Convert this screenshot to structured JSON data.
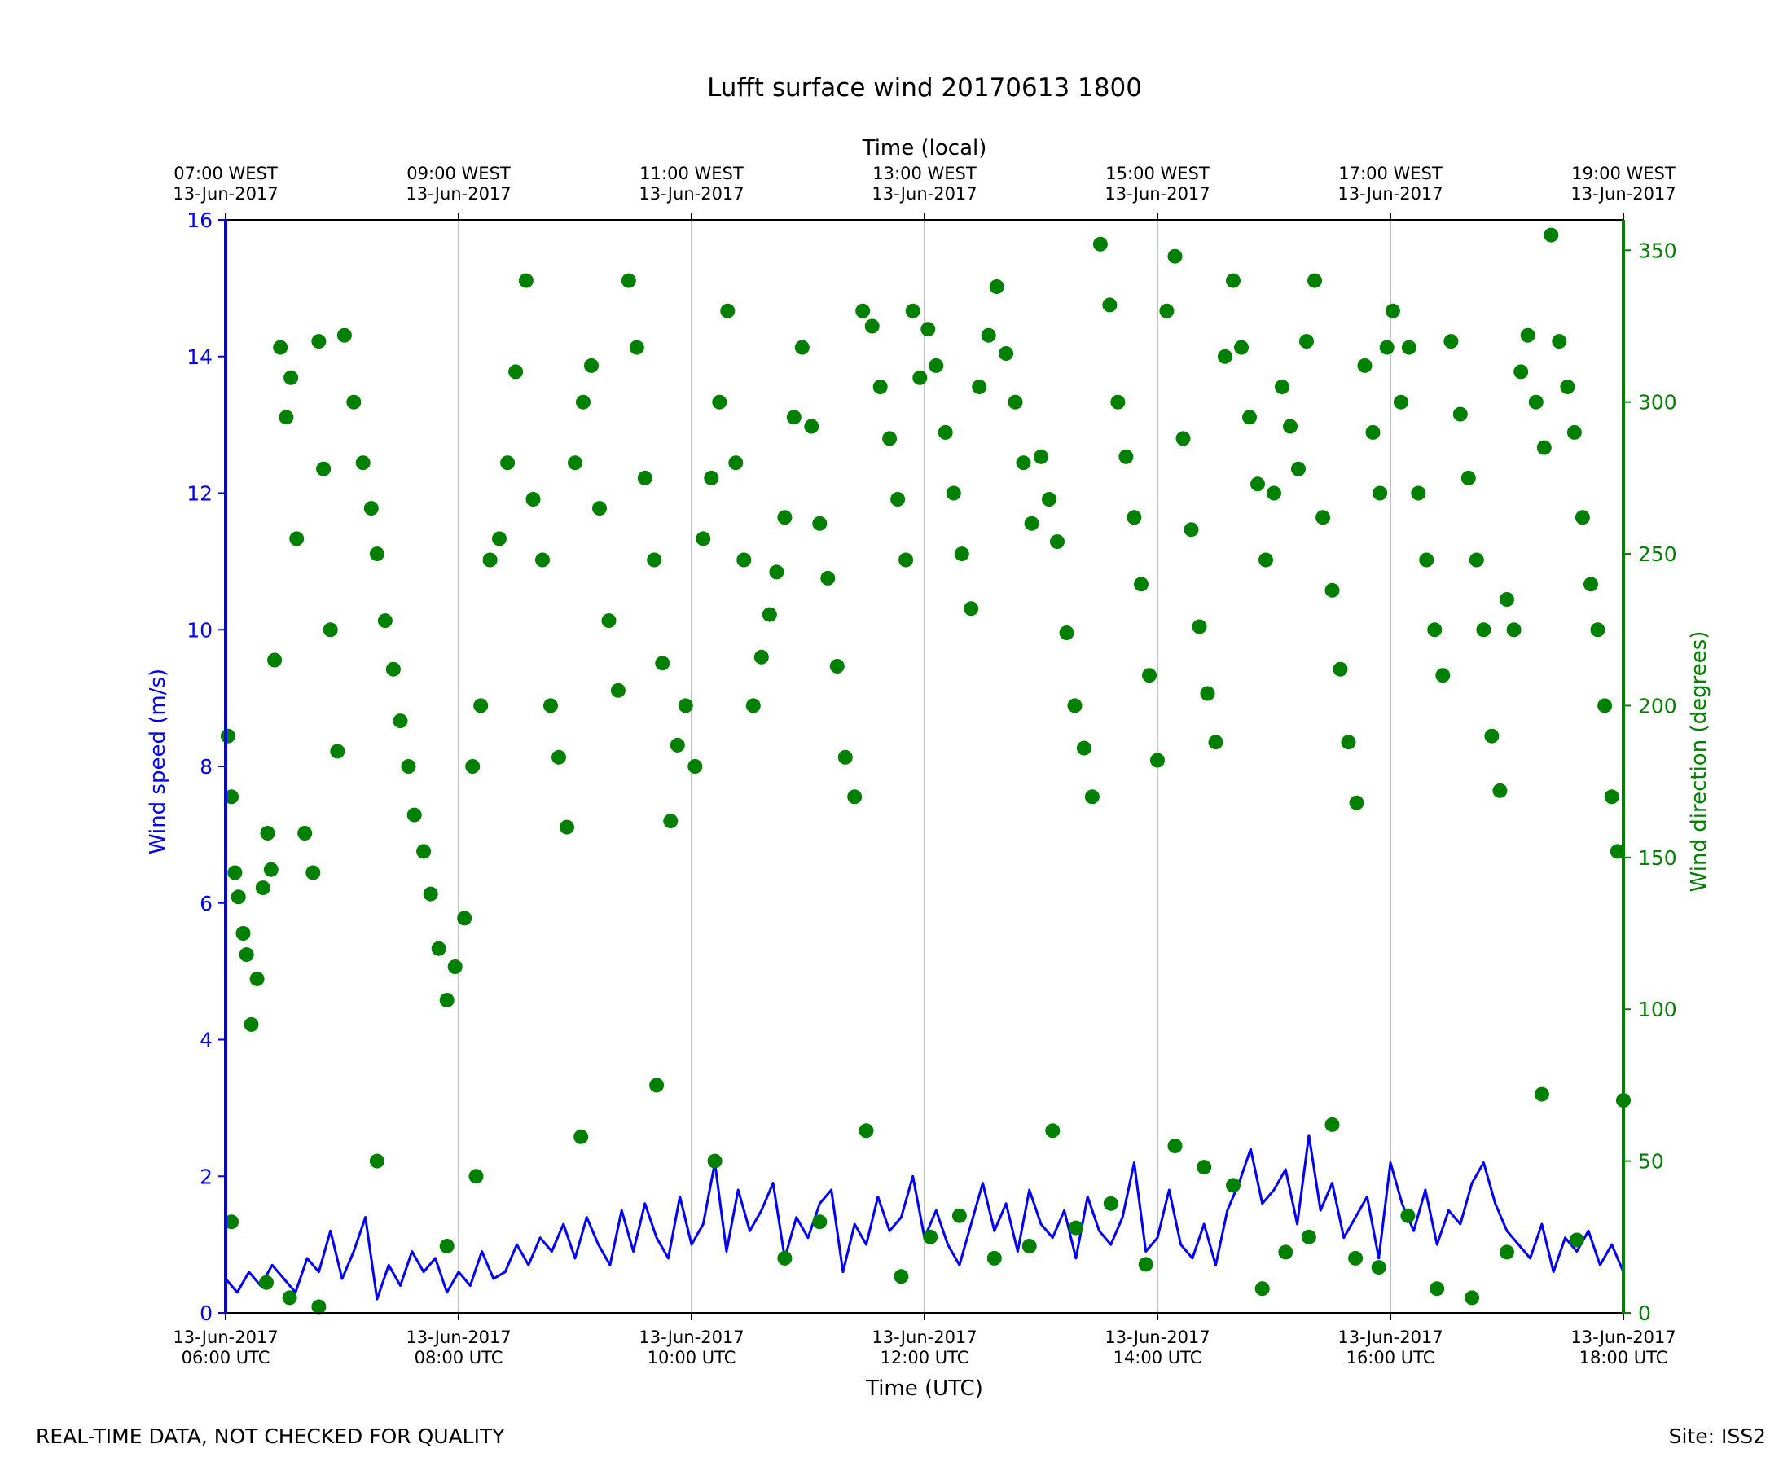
{
  "chart_data": {
    "type": "line+scatter",
    "title": "Lufft surface wind 20170613 1800",
    "xlabel": "Time (UTC)",
    "x2label": "Time (local)",
    "ylabel": "Wind speed (m/s)",
    "y2label": "Wind direction (degrees)",
    "xlim": [
      "2017-06-13T06:00Z",
      "2017-06-13T18:00Z"
    ],
    "ylim": [
      0,
      16
    ],
    "y2lim": [
      0,
      360
    ],
    "grid": "vertical at major x ticks",
    "x_ticks": [
      {
        "line1": "13-Jun-2017",
        "line2": "06:00 UTC"
      },
      {
        "line1": "13-Jun-2017",
        "line2": "08:00 UTC"
      },
      {
        "line1": "13-Jun-2017",
        "line2": "10:00 UTC"
      },
      {
        "line1": "13-Jun-2017",
        "line2": "12:00 UTC"
      },
      {
        "line1": "13-Jun-2017",
        "line2": "14:00 UTC"
      },
      {
        "line1": "13-Jun-2017",
        "line2": "16:00 UTC"
      },
      {
        "line1": "13-Jun-2017",
        "line2": "18:00 UTC"
      }
    ],
    "x2_ticks": [
      {
        "line1": "07:00 WEST",
        "line2": "13-Jun-2017"
      },
      {
        "line1": "09:00 WEST",
        "line2": "13-Jun-2017"
      },
      {
        "line1": "11:00 WEST",
        "line2": "13-Jun-2017"
      },
      {
        "line1": "13:00 WEST",
        "line2": "13-Jun-2017"
      },
      {
        "line1": "15:00 WEST",
        "line2": "13-Jun-2017"
      },
      {
        "line1": "17:00 WEST",
        "line2": "13-Jun-2017"
      },
      {
        "line1": "19:00 WEST",
        "line2": "13-Jun-2017"
      }
    ],
    "y_ticks": [
      "0",
      "2",
      "4",
      "6",
      "8",
      "10",
      "12",
      "14",
      "16"
    ],
    "y2_ticks": [
      "0",
      "50",
      "100",
      "150",
      "200",
      "250",
      "300",
      "350"
    ],
    "colors": {
      "speed": "#0000ff",
      "direction": "#008000"
    },
    "series": [
      {
        "kind": "line",
        "hour_utc": [
          6.0,
          6.1,
          6.2,
          6.3,
          6.4,
          6.5,
          6.6,
          6.7,
          6.8,
          6.9,
          7.0,
          7.1,
          7.2,
          7.3,
          7.4,
          7.5,
          7.6,
          7.7,
          7.8,
          7.9,
          8.0,
          8.1,
          8.2,
          8.3,
          8.4,
          8.5,
          8.6,
          8.7,
          8.8,
          8.9,
          9.0,
          9.1,
          9.2,
          9.3,
          9.4,
          9.5,
          9.6,
          9.7,
          9.8,
          9.9,
          10.0,
          10.1,
          10.2,
          10.3,
          10.4,
          10.5,
          10.6,
          10.7,
          10.8,
          10.9,
          11.0,
          11.1,
          11.2,
          11.3,
          11.4,
          11.5,
          11.6,
          11.7,
          11.8,
          11.9,
          12.0,
          12.1,
          12.2,
          12.3,
          12.4,
          12.5,
          12.6,
          12.7,
          12.8,
          12.9,
          13.0,
          13.1,
          13.2,
          13.3,
          13.4,
          13.5,
          13.6,
          13.7,
          13.8,
          13.9,
          14.0,
          14.1,
          14.2,
          14.3,
          14.4,
          14.5,
          14.6,
          14.7,
          14.8,
          14.9,
          15.0,
          15.1,
          15.2,
          15.3,
          15.4,
          15.5,
          15.6,
          15.7,
          15.8,
          15.9,
          16.0,
          16.1,
          16.2,
          16.3,
          16.4,
          16.5,
          16.6,
          16.7,
          16.8,
          16.9,
          17.0,
          17.1,
          17.2,
          17.3,
          17.4,
          17.5,
          17.6,
          17.7,
          17.8,
          17.9,
          18.0
        ],
        "values": [
          0.5,
          0.3,
          0.6,
          0.4,
          0.7,
          0.5,
          0.3,
          0.8,
          0.6,
          1.2,
          0.5,
          0.9,
          1.4,
          0.2,
          0.7,
          0.4,
          0.9,
          0.6,
          0.8,
          0.3,
          0.6,
          0.4,
          0.9,
          0.5,
          0.6,
          1.0,
          0.7,
          1.1,
          0.9,
          1.3,
          0.8,
          1.4,
          1.0,
          0.7,
          1.5,
          0.9,
          1.6,
          1.1,
          0.8,
          1.7,
          1.0,
          1.3,
          2.2,
          0.9,
          1.8,
          1.2,
          1.5,
          1.9,
          0.8,
          1.4,
          1.1,
          1.6,
          1.8,
          0.6,
          1.3,
          1.0,
          1.7,
          1.2,
          1.4,
          2.0,
          1.1,
          1.5,
          1.0,
          0.7,
          1.3,
          1.9,
          1.2,
          1.6,
          0.9,
          1.8,
          1.3,
          1.1,
          1.5,
          0.8,
          1.7,
          1.2,
          1.0,
          1.4,
          2.2,
          0.9,
          1.1,
          1.8,
          1.0,
          0.8,
          1.3,
          0.7,
          1.5,
          1.9,
          2.4,
          1.6,
          1.8,
          2.1,
          1.3,
          2.6,
          1.5,
          1.9,
          1.1,
          1.4,
          1.7,
          0.8,
          2.2,
          1.6,
          1.2,
          1.8,
          1.0,
          1.5,
          1.3,
          1.9,
          2.2,
          1.6,
          1.2,
          1.0,
          0.8,
          1.3,
          0.6,
          1.1,
          0.9,
          1.2,
          0.7,
          1.0,
          0.6
        ]
      },
      {
        "kind": "scatter",
        "points": [
          [
            6.02,
            190
          ],
          [
            6.05,
            170
          ],
          [
            6.08,
            145
          ],
          [
            6.11,
            137
          ],
          [
            6.15,
            125
          ],
          [
            6.18,
            118
          ],
          [
            6.22,
            95
          ],
          [
            6.27,
            110
          ],
          [
            6.32,
            140
          ],
          [
            6.36,
            158
          ],
          [
            6.39,
            146
          ],
          [
            6.42,
            215
          ],
          [
            6.47,
            318
          ],
          [
            6.52,
            295
          ],
          [
            6.56,
            308
          ],
          [
            6.61,
            255
          ],
          [
            6.68,
            158
          ],
          [
            6.75,
            145
          ],
          [
            6.8,
            320
          ],
          [
            6.84,
            278
          ],
          [
            6.9,
            225
          ],
          [
            6.96,
            185
          ],
          [
            7.02,
            322
          ],
          [
            7.1,
            300
          ],
          [
            7.18,
            280
          ],
          [
            7.25,
            265
          ],
          [
            7.3,
            250
          ],
          [
            7.37,
            228
          ],
          [
            7.44,
            212
          ],
          [
            7.5,
            195
          ],
          [
            7.57,
            180
          ],
          [
            7.62,
            164
          ],
          [
            7.7,
            152
          ],
          [
            7.76,
            138
          ],
          [
            7.83,
            120
          ],
          [
            7.9,
            103
          ],
          [
            7.97,
            114
          ],
          [
            8.05,
            130
          ],
          [
            8.12,
            180
          ],
          [
            8.19,
            200
          ],
          [
            8.27,
            248
          ],
          [
            8.35,
            255
          ],
          [
            8.42,
            280
          ],
          [
            8.49,
            310
          ],
          [
            8.58,
            340
          ],
          [
            8.64,
            268
          ],
          [
            8.72,
            248
          ],
          [
            8.79,
            200
          ],
          [
            8.86,
            183
          ],
          [
            8.93,
            160
          ],
          [
            9.0,
            280
          ],
          [
            9.07,
            300
          ],
          [
            9.14,
            312
          ],
          [
            9.21,
            265
          ],
          [
            9.29,
            228
          ],
          [
            9.37,
            205
          ],
          [
            9.46,
            340
          ],
          [
            9.53,
            318
          ],
          [
            9.6,
            275
          ],
          [
            9.68,
            248
          ],
          [
            9.75,
            214
          ],
          [
            9.82,
            162
          ],
          [
            9.88,
            187
          ],
          [
            9.95,
            200
          ],
          [
            10.03,
            180
          ],
          [
            10.1,
            255
          ],
          [
            10.17,
            275
          ],
          [
            10.24,
            300
          ],
          [
            10.31,
            330
          ],
          [
            10.38,
            280
          ],
          [
            10.45,
            248
          ],
          [
            10.53,
            200
          ],
          [
            10.6,
            216
          ],
          [
            10.67,
            230
          ],
          [
            10.73,
            244
          ],
          [
            10.8,
            262
          ],
          [
            10.88,
            295
          ],
          [
            10.95,
            318
          ],
          [
            11.03,
            292
          ],
          [
            11.1,
            260
          ],
          [
            11.17,
            242
          ],
          [
            11.25,
            213
          ],
          [
            11.32,
            183
          ],
          [
            11.4,
            170
          ],
          [
            11.47,
            330
          ],
          [
            11.55,
            325
          ],
          [
            11.62,
            305
          ],
          [
            11.7,
            288
          ],
          [
            11.77,
            268
          ],
          [
            11.84,
            248
          ],
          [
            11.9,
            330
          ],
          [
            11.96,
            308
          ],
          [
            12.03,
            324
          ],
          [
            12.1,
            312
          ],
          [
            12.18,
            290
          ],
          [
            12.25,
            270
          ],
          [
            12.32,
            250
          ],
          [
            12.4,
            232
          ],
          [
            12.47,
            305
          ],
          [
            12.55,
            322
          ],
          [
            12.62,
            338
          ],
          [
            12.7,
            316
          ],
          [
            12.78,
            300
          ],
          [
            12.85,
            280
          ],
          [
            12.92,
            260
          ],
          [
            13.0,
            282
          ],
          [
            13.07,
            268
          ],
          [
            13.14,
            254
          ],
          [
            13.22,
            224
          ],
          [
            13.29,
            200
          ],
          [
            13.37,
            186
          ],
          [
            13.44,
            170
          ],
          [
            13.51,
            352
          ],
          [
            13.59,
            332
          ],
          [
            13.66,
            300
          ],
          [
            13.73,
            282
          ],
          [
            13.8,
            262
          ],
          [
            13.86,
            240
          ],
          [
            13.93,
            210
          ],
          [
            14.0,
            182
          ],
          [
            14.08,
            330
          ],
          [
            14.15,
            348
          ],
          [
            14.22,
            288
          ],
          [
            14.29,
            258
          ],
          [
            14.36,
            226
          ],
          [
            14.43,
            204
          ],
          [
            14.5,
            188
          ],
          [
            14.58,
            315
          ],
          [
            14.65,
            340
          ],
          [
            14.72,
            318
          ],
          [
            14.79,
            295
          ],
          [
            14.86,
            273
          ],
          [
            14.93,
            248
          ],
          [
            15.0,
            270
          ],
          [
            15.07,
            305
          ],
          [
            15.14,
            292
          ],
          [
            15.21,
            278
          ],
          [
            15.28,
            320
          ],
          [
            15.35,
            340
          ],
          [
            15.42,
            262
          ],
          [
            15.5,
            238
          ],
          [
            15.57,
            212
          ],
          [
            15.64,
            188
          ],
          [
            15.71,
            168
          ],
          [
            15.78,
            312
          ],
          [
            15.85,
            290
          ],
          [
            15.91,
            270
          ],
          [
            15.97,
            318
          ],
          [
            16.02,
            330
          ],
          [
            16.09,
            300
          ],
          [
            16.16,
            318
          ],
          [
            16.24,
            270
          ],
          [
            16.31,
            248
          ],
          [
            16.38,
            225
          ],
          [
            16.45,
            210
          ],
          [
            16.52,
            320
          ],
          [
            16.6,
            296
          ],
          [
            16.67,
            275
          ],
          [
            16.74,
            248
          ],
          [
            16.8,
            225
          ],
          [
            16.87,
            190
          ],
          [
            16.94,
            172
          ],
          [
            17.0,
            235
          ],
          [
            17.06,
            225
          ],
          [
            17.12,
            310
          ],
          [
            17.18,
            322
          ],
          [
            17.25,
            300
          ],
          [
            17.32,
            285
          ],
          [
            17.38,
            355
          ],
          [
            17.45,
            320
          ],
          [
            17.52,
            305
          ],
          [
            17.58,
            290
          ],
          [
            17.65,
            262
          ],
          [
            17.72,
            240
          ],
          [
            17.78,
            225
          ],
          [
            17.84,
            200
          ],
          [
            17.9,
            170
          ],
          [
            17.95,
            152
          ],
          [
            18.0,
            70
          ],
          [
            6.05,
            30
          ],
          [
            6.35,
            10
          ],
          [
            6.55,
            5
          ],
          [
            6.8,
            2
          ],
          [
            7.3,
            50
          ],
          [
            7.9,
            22
          ],
          [
            8.15,
            45
          ],
          [
            9.05,
            58
          ],
          [
            9.7,
            75
          ],
          [
            10.2,
            50
          ],
          [
            10.8,
            18
          ],
          [
            11.1,
            30
          ],
          [
            11.5,
            60
          ],
          [
            11.8,
            12
          ],
          [
            12.05,
            25
          ],
          [
            12.3,
            32
          ],
          [
            12.6,
            18
          ],
          [
            12.9,
            22
          ],
          [
            13.1,
            60
          ],
          [
            13.3,
            28
          ],
          [
            13.6,
            36
          ],
          [
            13.9,
            16
          ],
          [
            14.15,
            55
          ],
          [
            14.4,
            48
          ],
          [
            14.65,
            42
          ],
          [
            14.9,
            8
          ],
          [
            15.1,
            20
          ],
          [
            15.3,
            25
          ],
          [
            15.5,
            62
          ],
          [
            15.7,
            18
          ],
          [
            15.9,
            15
          ],
          [
            16.15,
            32
          ],
          [
            16.4,
            8
          ],
          [
            16.7,
            5
          ],
          [
            17.0,
            20
          ],
          [
            17.3,
            72
          ],
          [
            17.6,
            24
          ]
        ]
      }
    ]
  },
  "footer": {
    "disclaimer": "REAL-TIME DATA, NOT CHECKED FOR QUALITY",
    "site": "Site: ISS2"
  }
}
